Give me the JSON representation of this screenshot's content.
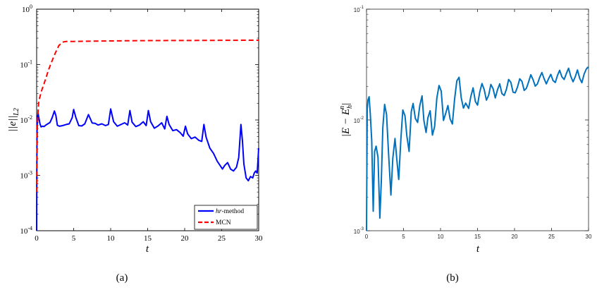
{
  "chart_data": [
    {
      "type": "line",
      "panel_label": "(a)",
      "xlabel": "t",
      "ylabel": "||e||L2",
      "ylabel_main": "||e||",
      "ylabel_sub": "L2",
      "xlim": [
        0,
        30
      ],
      "ylim": [
        0.0001,
        1
      ],
      "yscale": "log",
      "xticks": [
        0,
        5,
        10,
        15,
        20,
        25,
        30
      ],
      "xtick_labels": [
        "0",
        "5",
        "10",
        "15",
        "20",
        "25",
        "30"
      ],
      "ytick_labels": [
        {
          "base": "10",
          "exp": "-4"
        },
        {
          "base": "10",
          "exp": "-3"
        },
        {
          "base": "10",
          "exp": "-2"
        },
        {
          "base": "10",
          "exp": "-1"
        },
        {
          "base": "10",
          "exp": "0"
        }
      ],
      "legend_position": "bottom-right",
      "colors": {
        "hr": "#0000ff",
        "mcn": "#ff0000"
      },
      "series": [
        {
          "name": "hr-method",
          "name_italic": "hr",
          "name_rest": "-method",
          "style": "solid",
          "x": [
            0,
            0.02,
            0.05,
            0.1,
            0.15,
            0.2,
            0.3,
            0.45,
            0.6,
            0.8,
            1.0,
            1.2,
            1.5,
            1.8,
            2.1,
            2.4,
            2.6,
            2.8,
            3.1,
            3.5,
            4.0,
            4.4,
            4.8,
            5.0,
            5.3,
            5.7,
            6.1,
            6.5,
            7.0,
            7.5,
            7.9,
            8.3,
            8.8,
            9.3,
            9.7,
            10.0,
            10.4,
            10.9,
            11.4,
            11.9,
            12.3,
            12.6,
            12.9,
            13.4,
            13.9,
            14.4,
            14.8,
            15.1,
            15.4,
            15.9,
            16.4,
            16.9,
            17.3,
            17.6,
            17.9,
            18.4,
            18.9,
            19.4,
            19.8,
            20.1,
            20.4,
            20.9,
            21.4,
            21.9,
            22.3,
            22.6,
            22.9,
            23.4,
            23.9,
            24.4,
            24.8,
            25.1,
            25.4,
            25.8,
            26.2,
            26.6,
            27.0,
            27.3,
            27.6,
            27.8,
            28.0,
            28.3,
            28.6,
            28.9,
            29.2,
            29.4,
            29.6,
            29.8,
            30.0
          ],
          "y": [
            0.0001,
            0.001,
            0.006,
            0.01,
            0.012,
            0.013,
            0.011,
            0.0085,
            0.0075,
            0.0077,
            0.0076,
            0.008,
            0.0085,
            0.009,
            0.011,
            0.0145,
            0.012,
            0.008,
            0.0077,
            0.0079,
            0.0083,
            0.0085,
            0.011,
            0.0155,
            0.011,
            0.0079,
            0.0078,
            0.0085,
            0.0125,
            0.0088,
            0.0087,
            0.0081,
            0.0085,
            0.0079,
            0.0083,
            0.0158,
            0.0093,
            0.0077,
            0.0083,
            0.0089,
            0.0081,
            0.0148,
            0.0091,
            0.0076,
            0.0081,
            0.0093,
            0.0079,
            0.0148,
            0.0093,
            0.0071,
            0.0078,
            0.0089,
            0.0069,
            0.0116,
            0.0083,
            0.0064,
            0.0067,
            0.0059,
            0.0051,
            0.0077,
            0.0056,
            0.0046,
            0.0049,
            0.0043,
            0.0041,
            0.0083,
            0.0049,
            0.0031,
            0.0025,
            0.0018,
            0.0015,
            0.0013,
            0.0015,
            0.0017,
            0.0013,
            0.0012,
            0.0014,
            0.0021,
            0.0083,
            0.0043,
            0.0016,
            0.0009,
            0.0008,
            0.00095,
            0.0009,
            0.0011,
            0.0012,
            0.0011,
            0.0031
          ]
        },
        {
          "name": "MCN",
          "style": "dashed",
          "x": [
            0,
            0.05,
            0.1,
            0.2,
            0.3,
            0.5,
            0.7,
            1.0,
            1.3,
            1.6,
            2.0,
            2.5,
            3.0,
            3.5,
            4.0,
            5.0,
            7.0,
            10.0,
            14.0,
            18.0,
            22.0,
            26.0,
            30.0
          ],
          "y": [
            0.0005,
            0.002,
            0.008,
            0.015,
            0.022,
            0.028,
            0.035,
            0.045,
            0.06,
            0.08,
            0.11,
            0.16,
            0.22,
            0.255,
            0.262,
            0.262,
            0.264,
            0.267,
            0.27,
            0.272,
            0.273,
            0.274,
            0.275
          ]
        }
      ]
    },
    {
      "type": "line",
      "panel_label": "(b)",
      "xlabel": "t",
      "ylabel": "|E − E_h^n|",
      "ylabel_open": "|E − E",
      "ylabel_sub": "h",
      "ylabel_sup": "n",
      "ylabel_close": "|",
      "xlim": [
        0,
        30
      ],
      "ylim": [
        0.001,
        0.1
      ],
      "yscale": "log",
      "xticks": [
        0,
        5,
        10,
        15,
        20,
        25,
        30
      ],
      "xtick_labels": [
        "0",
        "5",
        "10",
        "15",
        "20",
        "25",
        "30"
      ],
      "ytick_labels": [
        {
          "base": "10",
          "exp": "-3"
        },
        {
          "base": "10",
          "exp": "-2"
        },
        {
          "base": "10",
          "exp": "-1"
        }
      ],
      "colors": {
        "line": "#0072bd"
      },
      "series": [
        {
          "style": "solid",
          "x": [
            0,
            0.1,
            0.2,
            0.35,
            0.5,
            0.7,
            0.9,
            1.1,
            1.3,
            1.55,
            1.8,
            2.0,
            2.2,
            2.45,
            2.7,
            3.0,
            3.3,
            3.55,
            3.85,
            4.1,
            4.35,
            4.65,
            4.9,
            5.2,
            5.45,
            5.75,
            6.05,
            6.3,
            6.6,
            6.9,
            7.2,
            7.5,
            7.75,
            8.05,
            8.3,
            8.6,
            8.9,
            9.2,
            9.5,
            9.8,
            10.1,
            10.4,
            10.7,
            11.0,
            11.3,
            11.6,
            11.9,
            12.2,
            12.5,
            12.8,
            13.1,
            13.4,
            13.8,
            14.1,
            14.4,
            14.7,
            15.0,
            15.3,
            15.6,
            15.9,
            16.2,
            16.5,
            16.8,
            17.1,
            17.4,
            17.7,
            18.0,
            18.3,
            18.6,
            18.9,
            19.2,
            19.5,
            19.8,
            20.1,
            20.4,
            20.7,
            21.0,
            21.3,
            21.6,
            21.9,
            22.2,
            22.5,
            22.8,
            23.1,
            23.4,
            23.7,
            24.0,
            24.3,
            24.6,
            24.9,
            25.2,
            25.5,
            25.8,
            26.1,
            26.4,
            26.7,
            27.0,
            27.3,
            27.6,
            27.9,
            28.2,
            28.5,
            28.8,
            29.1,
            29.4,
            29.7,
            30.0
          ],
          "y": [
            0.001,
            0.0125,
            0.0152,
            0.0162,
            0.0115,
            0.0065,
            0.0015,
            0.0052,
            0.0058,
            0.0046,
            0.0013,
            0.0028,
            0.0085,
            0.0138,
            0.0112,
            0.0047,
            0.0021,
            0.0045,
            0.0068,
            0.0044,
            0.0029,
            0.0068,
            0.0123,
            0.0109,
            0.0072,
            0.0052,
            0.0119,
            0.0141,
            0.0103,
            0.0095,
            0.0135,
            0.0165,
            0.0099,
            0.0077,
            0.0105,
            0.0121,
            0.0073,
            0.0087,
            0.0158,
            0.0205,
            0.0182,
            0.0099,
            0.0115,
            0.0135,
            0.0102,
            0.0092,
            0.0155,
            0.0225,
            0.0243,
            0.0158,
            0.0128,
            0.0142,
            0.0127,
            0.0163,
            0.0195,
            0.0147,
            0.0136,
            0.0178,
            0.0213,
            0.0188,
            0.0151,
            0.0167,
            0.0209,
            0.0192,
            0.0158,
            0.0188,
            0.0212,
            0.0173,
            0.0166,
            0.0189,
            0.0232,
            0.0219,
            0.0178,
            0.0176,
            0.0198,
            0.0235,
            0.0223,
            0.0185,
            0.0193,
            0.0221,
            0.0256,
            0.0231,
            0.0202,
            0.0212,
            0.0242,
            0.0268,
            0.0235,
            0.0212,
            0.0236,
            0.0258,
            0.0227,
            0.0218,
            0.0252,
            0.0281,
            0.0245,
            0.0232,
            0.0262,
            0.0293,
            0.0248,
            0.0221,
            0.0245,
            0.0283,
            0.0238,
            0.0217,
            0.0259,
            0.0289,
            0.0301
          ]
        }
      ]
    }
  ]
}
